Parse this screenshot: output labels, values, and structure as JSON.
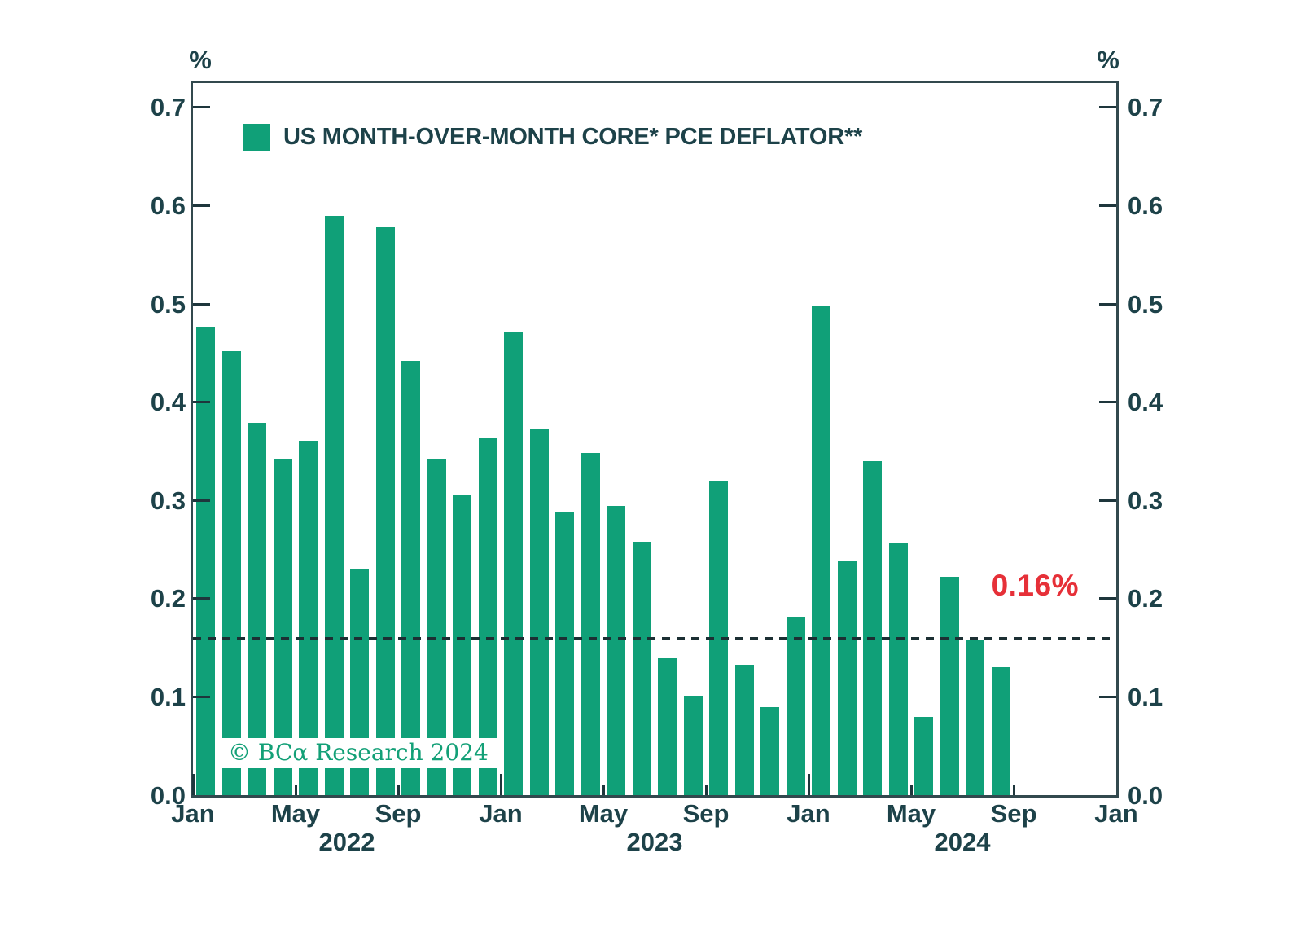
{
  "chart_data": {
    "type": "bar",
    "legend_label": "US MONTH-OVER-MONTH CORE* PCE DEFLATOR**",
    "unit_label_left": "%",
    "unit_label_right": "%",
    "x": [
      "Jan 2022",
      "Feb 2022",
      "Mar 2022",
      "Apr 2022",
      "May 2022",
      "Jun 2022",
      "Jul 2022",
      "Aug 2022",
      "Sep 2022",
      "Oct 2022",
      "Nov 2022",
      "Dec 2022",
      "Jan 2023",
      "Feb 2023",
      "Mar 2023",
      "Apr 2023",
      "May 2023",
      "Jun 2023",
      "Jul 2023",
      "Aug 2023",
      "Sep 2023",
      "Oct 2023",
      "Nov 2023",
      "Dec 2023",
      "Jan 2024",
      "Feb 2024",
      "Mar 2024",
      "Apr 2024",
      "May 2024",
      "Jun 2024",
      "Jul 2024",
      "Aug 2024"
    ],
    "values": [
      0.477,
      0.452,
      0.379,
      0.342,
      0.361,
      0.59,
      0.23,
      0.578,
      0.442,
      0.342,
      0.305,
      0.363,
      0.471,
      0.373,
      0.289,
      0.348,
      0.294,
      0.258,
      0.139,
      0.101,
      0.32,
      0.133,
      0.09,
      0.182,
      0.498,
      0.239,
      0.34,
      0.256,
      0.08,
      0.222,
      0.158,
      0.13
    ],
    "ylim": [
      0,
      0.725
    ],
    "y_tick_labels": [
      "0.0",
      "0.1",
      "0.2",
      "0.3",
      "0.4",
      "0.5",
      "0.6",
      "0.7"
    ],
    "x_ticks": [
      {
        "label": "Jan",
        "month_offset": 0,
        "major": true
      },
      {
        "label": "May",
        "month_offset": 4,
        "major": false
      },
      {
        "label": "Sep",
        "month_offset": 8,
        "major": false
      },
      {
        "label": "Jan",
        "month_offset": 12,
        "major": true
      },
      {
        "label": "May",
        "month_offset": 16,
        "major": false
      },
      {
        "label": "Sep",
        "month_offset": 20,
        "major": false
      },
      {
        "label": "Jan",
        "month_offset": 24,
        "major": true
      },
      {
        "label": "May",
        "month_offset": 28,
        "major": false
      },
      {
        "label": "Sep",
        "month_offset": 32,
        "major": false
      },
      {
        "label": "Jan",
        "month_offset": 36,
        "major": true
      }
    ],
    "year_labels": [
      {
        "label": "2022",
        "month_offset": 6
      },
      {
        "label": "2023",
        "month_offset": 18
      },
      {
        "label": "2024",
        "month_offset": 30
      }
    ],
    "reference_line": {
      "value": 0.16,
      "label": "0.16%"
    },
    "watermark": "© BCα Research 2024",
    "grid": false,
    "legend_position": "top-left",
    "colors": {
      "bar": "#10a078",
      "text": "#1d4249",
      "spine": "#32494e",
      "tick": "#1e363c",
      "reference_line": "#1c2f33",
      "reference_label": "#e63038",
      "watermark_text": "#13a077"
    }
  }
}
